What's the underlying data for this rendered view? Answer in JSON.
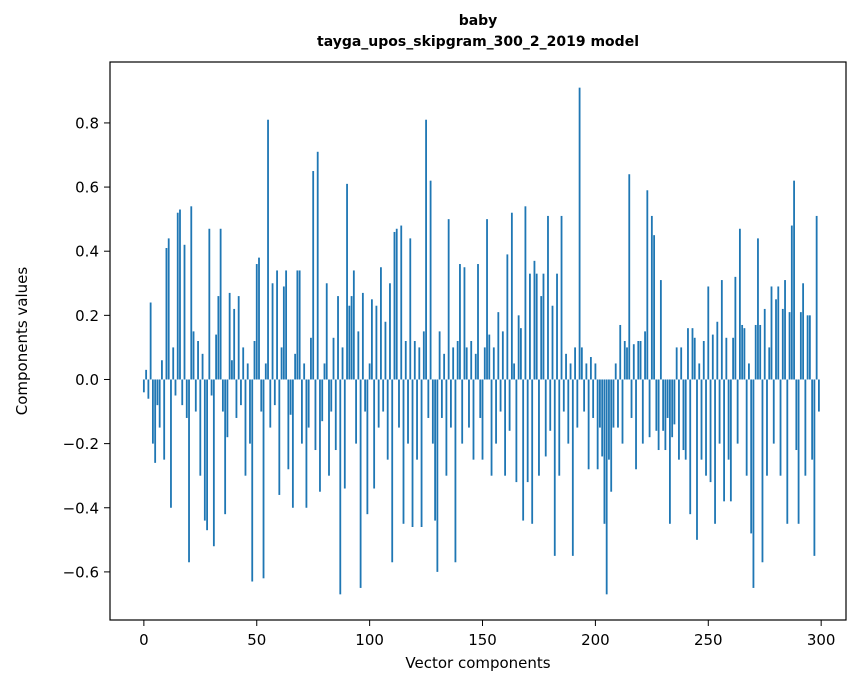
{
  "figure": {
    "title_line1": "baby",
    "title_line2": "tayga_upos_skipgram_300_2_2019 model",
    "xlabel": "Vector components",
    "ylabel": "Components values"
  },
  "chart_data": {
    "type": "bar",
    "title": "baby",
    "subtitle": "tayga_upos_skipgram_300_2_2019 model",
    "xlabel": "Vector components",
    "ylabel": "Components values",
    "bar_color": "#1f77b4",
    "n_components": 300,
    "x_start": 0,
    "xlim": [
      -15,
      311
    ],
    "ylim": [
      -0.75,
      0.99
    ],
    "xticks": [
      0,
      50,
      100,
      150,
      200,
      250,
      300
    ],
    "yticks": [
      -0.6,
      -0.4,
      -0.2,
      0.0,
      0.2,
      0.4,
      0.6,
      0.8
    ],
    "grid": false,
    "legend": "none",
    "values": [
      -0.04,
      0.03,
      -0.06,
      0.24,
      -0.2,
      -0.26,
      -0.08,
      -0.15,
      0.06,
      -0.25,
      0.41,
      0.44,
      -0.4,
      0.1,
      -0.05,
      0.52,
      0.53,
      -0.08,
      0.42,
      -0.12,
      -0.57,
      0.54,
      0.15,
      -0.1,
      0.12,
      -0.3,
      0.08,
      -0.44,
      -0.47,
      0.47,
      -0.05,
      -0.52,
      0.14,
      0.26,
      0.47,
      -0.1,
      -0.42,
      -0.18,
      0.27,
      0.06,
      0.22,
      -0.12,
      0.26,
      -0.08,
      0.1,
      -0.3,
      0.05,
      -0.2,
      -0.63,
      0.12,
      0.36,
      0.38,
      -0.1,
      -0.62,
      0.05,
      0.81,
      -0.15,
      0.3,
      -0.08,
      0.34,
      -0.36,
      0.1,
      0.29,
      0.34,
      -0.28,
      -0.11,
      -0.4,
      0.08,
      0.34,
      0.34,
      -0.2,
      0.05,
      -0.4,
      -0.15,
      0.13,
      0.65,
      -0.22,
      0.71,
      -0.35,
      -0.13,
      0.05,
      0.3,
      -0.3,
      -0.1,
      0.13,
      -0.22,
      0.26,
      -0.67,
      0.1,
      -0.34,
      0.61,
      0.23,
      0.26,
      0.34,
      -0.2,
      0.15,
      -0.65,
      0.27,
      -0.1,
      -0.42,
      0.05,
      0.25,
      -0.34,
      0.23,
      -0.15,
      0.35,
      -0.1,
      0.18,
      -0.25,
      0.3,
      -0.57,
      0.46,
      0.47,
      -0.15,
      0.48,
      -0.45,
      0.12,
      -0.2,
      0.44,
      -0.46,
      0.12,
      -0.25,
      0.1,
      -0.46,
      0.15,
      0.81,
      -0.12,
      0.62,
      -0.2,
      -0.44,
      -0.6,
      0.15,
      -0.12,
      0.08,
      -0.3,
      0.5,
      -0.15,
      0.1,
      -0.57,
      0.12,
      0.36,
      -0.2,
      0.35,
      0.1,
      -0.15,
      0.12,
      -0.25,
      0.08,
      0.36,
      -0.12,
      -0.25,
      0.1,
      0.5,
      0.14,
      -0.3,
      0.1,
      -0.2,
      0.21,
      -0.1,
      0.15,
      -0.3,
      0.39,
      -0.16,
      0.52,
      0.05,
      -0.32,
      0.2,
      0.16,
      -0.44,
      0.54,
      -0.32,
      0.33,
      -0.45,
      0.37,
      0.33,
      -0.3,
      0.26,
      0.33,
      -0.24,
      0.51,
      -0.16,
      0.23,
      -0.55,
      0.33,
      -0.3,
      0.51,
      -0.1,
      0.08,
      -0.2,
      0.05,
      -0.55,
      0.1,
      -0.15,
      0.91,
      0.1,
      -0.1,
      0.05,
      -0.28,
      0.07,
      -0.12,
      0.05,
      -0.28,
      -0.15,
      -0.24,
      -0.45,
      -0.67,
      -0.25,
      -0.35,
      -0.15,
      0.05,
      -0.15,
      0.17,
      -0.2,
      0.12,
      0.1,
      0.64,
      -0.12,
      0.11,
      -0.28,
      0.12,
      0.12,
      -0.2,
      0.15,
      0.59,
      -0.18,
      0.51,
      0.45,
      -0.16,
      -0.22,
      0.31,
      -0.16,
      -0.22,
      -0.12,
      -0.45,
      -0.18,
      -0.14,
      0.1,
      -0.25,
      0.1,
      -0.22,
      -0.25,
      0.16,
      -0.42,
      0.16,
      0.13,
      -0.5,
      0.05,
      -0.25,
      0.12,
      -0.3,
      0.29,
      -0.32,
      0.14,
      -0.45,
      0.18,
      -0.2,
      0.31,
      -0.38,
      0.13,
      -0.25,
      -0.38,
      0.13,
      0.32,
      -0.2,
      0.47,
      0.17,
      0.16,
      -0.3,
      0.05,
      -0.48,
      -0.65,
      0.17,
      0.44,
      0.17,
      -0.57,
      0.22,
      -0.3,
      0.1,
      0.29,
      -0.2,
      0.25,
      0.29,
      -0.3,
      0.22,
      0.31,
      -0.45,
      0.21,
      0.48,
      0.62,
      -0.22,
      -0.45,
      0.21,
      0.3,
      -0.3,
      0.2,
      0.2,
      -0.25,
      -0.55,
      0.51,
      -0.1
    ]
  }
}
